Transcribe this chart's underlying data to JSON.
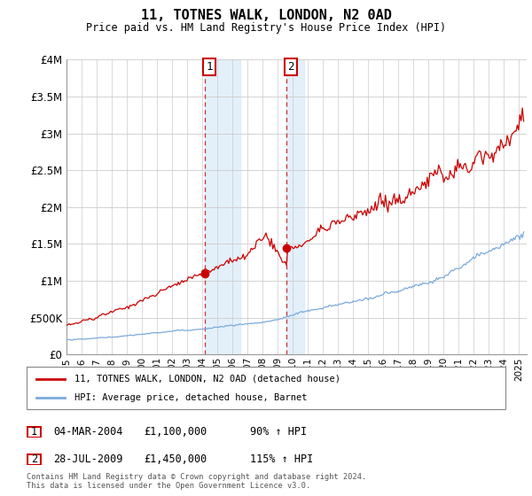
{
  "title": "11, TOTNES WALK, LONDON, N2 0AD",
  "subtitle": "Price paid vs. HM Land Registry's House Price Index (HPI)",
  "ylim": [
    0,
    4000000
  ],
  "yticks": [
    0,
    500000,
    1000000,
    1500000,
    2000000,
    2500000,
    3000000,
    3500000,
    4000000
  ],
  "ytick_labels": [
    "£0",
    "£500K",
    "£1M",
    "£1.5M",
    "£2M",
    "£2.5M",
    "£3M",
    "£3.5M",
    "£4M"
  ],
  "grid_color": "#cccccc",
  "transaction1_date": "04-MAR-2004",
  "transaction1_price": "£1,100,000",
  "transaction1_hpi": "90% ↑ HPI",
  "transaction1_year": 2004.17,
  "transaction1_value": 1100000,
  "transaction2_date": "28-JUL-2009",
  "transaction2_price": "£1,450,000",
  "transaction2_hpi": "115% ↑ HPI",
  "transaction2_year": 2009.58,
  "transaction2_value": 1450000,
  "shade1_start": 2004.17,
  "shade1_end": 2006.5,
  "shade2_start": 2009.58,
  "shade2_end": 2010.75,
  "shade_color": "#d8eaf8",
  "shade_alpha": 0.7,
  "red_line_color": "#cc0000",
  "blue_line_color": "#7aaadd",
  "legend_line1": "11, TOTNES WALK, LONDON, N2 0AD (detached house)",
  "legend_line2": "HPI: Average price, detached house, Barnet",
  "footer": "Contains HM Land Registry data © Crown copyright and database right 2024.\nThis data is licensed under the Open Government Licence v3.0.",
  "xmin": 1995,
  "xmax": 2025.5
}
